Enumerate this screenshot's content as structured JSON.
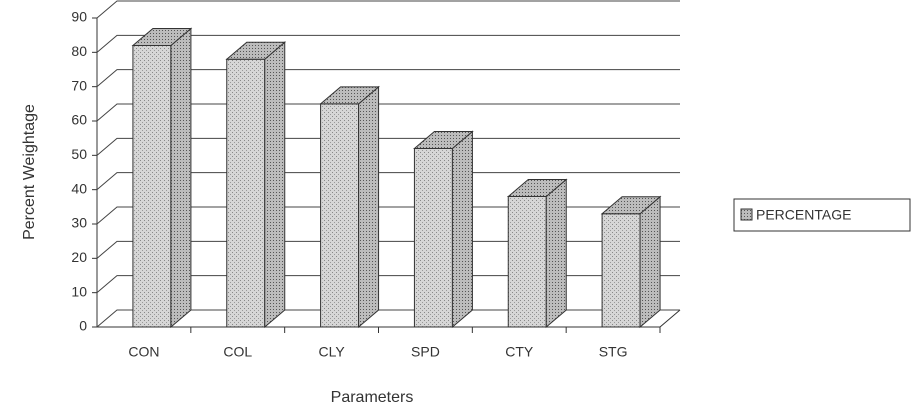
{
  "chart_data": {
    "type": "bar",
    "x_label": "Parameters",
    "y_label": "Percent Weightage",
    "categories": [
      "CON",
      "COL",
      "CLY",
      "SPD",
      "CTY",
      "STG"
    ],
    "series": [
      {
        "name": "PERCENTAGE",
        "color": "#c8c8c8",
        "values": [
          82,
          78,
          65,
          52,
          38,
          33
        ]
      }
    ],
    "ylim": [
      0,
      90
    ],
    "yticks": [
      0,
      10,
      20,
      30,
      40,
      50,
      60,
      70,
      80,
      90
    ],
    "grid": true,
    "legend": "right"
  }
}
